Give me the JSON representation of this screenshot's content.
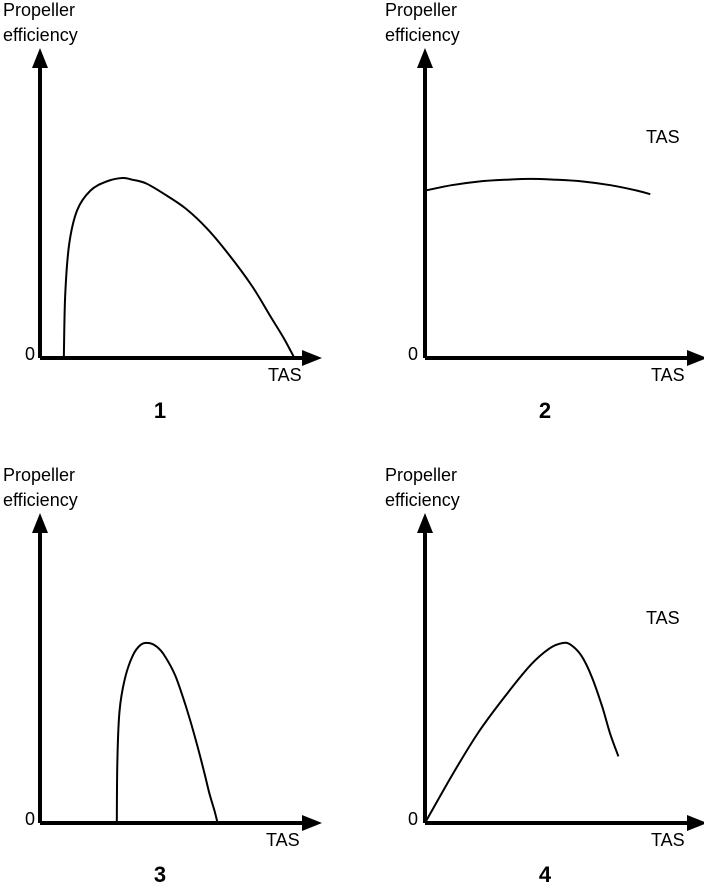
{
  "colors": {
    "line": "#000000",
    "background": "#ffffff"
  },
  "chart_data": [
    {
      "type": "line",
      "panel_label": "1",
      "ylabel": [
        "Propeller",
        "efficiency"
      ],
      "xlabel": "TAS",
      "origin_label": "0",
      "floating_label": "",
      "xlim": [
        0,
        1
      ],
      "ylim": [
        0,
        1
      ],
      "series": [
        {
          "x": [
            0.09,
            0.095,
            0.11,
            0.14,
            0.19,
            0.25,
            0.31,
            0.35,
            0.4,
            0.47,
            0.55,
            0.63,
            0.71,
            0.8,
            0.87,
            0.92,
            0.96
          ],
          "y": [
            0.0,
            0.35,
            0.63,
            0.82,
            0.93,
            0.98,
            1.0,
            0.99,
            0.97,
            0.91,
            0.83,
            0.72,
            0.58,
            0.4,
            0.23,
            0.11,
            0.0
          ]
        }
      ]
    },
    {
      "type": "line",
      "panel_label": "2",
      "ylabel": [
        "Propeller",
        "efficiency"
      ],
      "xlabel": "TAS",
      "origin_label": "0",
      "floating_label": "TAS",
      "xlim": [
        0,
        1
      ],
      "ylim": [
        0,
        1
      ],
      "series": [
        {
          "x": [
            0.0,
            0.1,
            0.2,
            0.3,
            0.4,
            0.5,
            0.6,
            0.7,
            0.8,
            0.85
          ],
          "y": [
            0.93,
            0.96,
            0.98,
            0.99,
            0.995,
            0.99,
            0.98,
            0.96,
            0.93,
            0.91
          ]
        }
      ]
    },
    {
      "type": "line",
      "panel_label": "3",
      "ylabel": [
        "Propeller",
        "efficiency"
      ],
      "xlabel": "TAS",
      "origin_label": "0",
      "floating_label": "",
      "xlim": [
        0,
        1
      ],
      "ylim": [
        0,
        1
      ],
      "series": [
        {
          "x": [
            0.29,
            0.292,
            0.3,
            0.32,
            0.35,
            0.38,
            0.41,
            0.44,
            0.47,
            0.51,
            0.55,
            0.59,
            0.62,
            0.64,
            0.66,
            0.67
          ],
          "y": [
            0.0,
            0.35,
            0.62,
            0.8,
            0.93,
            0.99,
            1.0,
            0.98,
            0.93,
            0.82,
            0.65,
            0.45,
            0.28,
            0.16,
            0.06,
            0.0
          ]
        }
      ]
    },
    {
      "type": "line",
      "panel_label": "4",
      "ylabel": [
        "Propeller",
        "efficiency"
      ],
      "xlabel": "TAS",
      "origin_label": "0",
      "floating_label": "TAS",
      "xlim": [
        0,
        1
      ],
      "ylim": [
        0,
        1
      ],
      "series": [
        {
          "x": [
            0.0,
            0.1,
            0.2,
            0.3,
            0.4,
            0.47,
            0.52,
            0.55,
            0.59,
            0.63,
            0.67,
            0.7,
            0.73
          ],
          "y": [
            0.0,
            0.26,
            0.5,
            0.7,
            0.88,
            0.97,
            1.0,
            0.99,
            0.93,
            0.81,
            0.64,
            0.49,
            0.37
          ]
        }
      ]
    }
  ]
}
